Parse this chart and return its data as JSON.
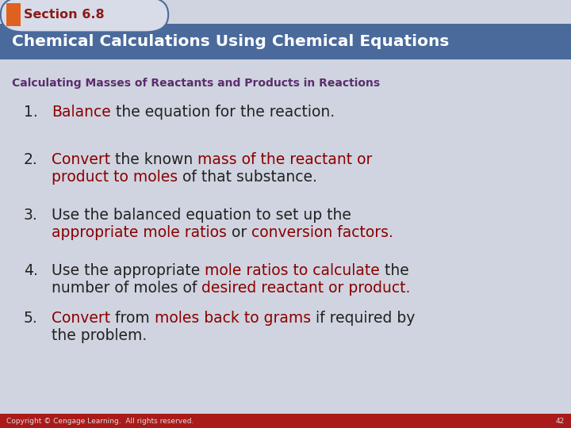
{
  "section_label": "Section 6.8",
  "title": "Chemical Calculations Using Chemical Equations",
  "subtitle": "Calculating Masses of Reactants and Products in Reactions",
  "bg_color": "#d0d4e0",
  "header_bg": "#4a6a9c",
  "tab_bg": "#e06020",
  "tab_text_color": "#8b1a1a",
  "header_text_color": "#ffffff",
  "subtitle_color": "#5c2d6e",
  "footer_bg": "#aa1a1a",
  "footer_text": "Copyright © Cengage Learning.  All rights reserved.",
  "footer_num": "42",
  "fontsize": 13.5
}
